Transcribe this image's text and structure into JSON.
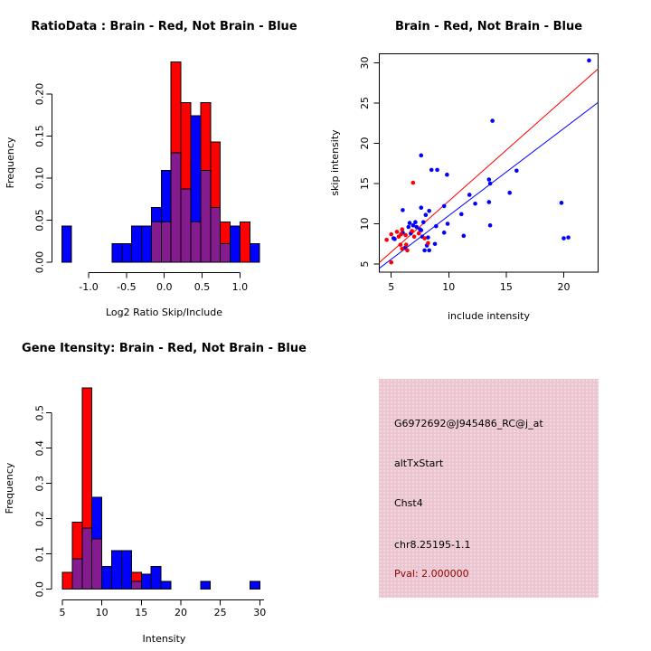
{
  "chart_data": [
    {
      "id": "ratio_histogram",
      "type": "bar",
      "title": "RatioData : Brain - Red, Not Brain - Blue",
      "xlabel": "Log2 Ratio Skip/Include",
      "ylabel": "Frequency",
      "x_ticks": [
        -1.0,
        -0.5,
        0.0,
        0.5,
        1.0
      ],
      "x_tick_labels": [
        "-1.0",
        "-0.5",
        "0.0",
        "0.5",
        "1.0"
      ],
      "y_ticks": [
        0.0,
        0.05,
        0.1,
        0.15,
        0.2
      ],
      "y_tick_labels": [
        "0.00",
        "0.05",
        "0.10",
        "0.15",
        "0.20"
      ],
      "xlim": [
        -1.45,
        1.4
      ],
      "ylim": [
        0,
        0.2435
      ],
      "legend": {
        "Brain": "red",
        "Not Brain": "blue"
      },
      "colors": {
        "red": "#ff0000",
        "blue": "#0000ff",
        "overlap": "#841b8f"
      },
      "bars": [
        {
          "x0": -1.355,
          "x1": -1.225,
          "red": 0,
          "blue": 0.043
        },
        {
          "x0": -0.69,
          "x1": -0.56,
          "red": 0,
          "blue": 0.022
        },
        {
          "x0": -0.56,
          "x1": -0.43,
          "red": 0,
          "blue": 0.022
        },
        {
          "x0": -0.43,
          "x1": -0.3,
          "red": 0,
          "blue": 0.043
        },
        {
          "x0": -0.3,
          "x1": -0.17,
          "red": 0,
          "blue": 0.043
        },
        {
          "x0": -0.17,
          "x1": -0.04,
          "red": 0.048,
          "blue": 0.065
        },
        {
          "x0": -0.04,
          "x1": 0.09,
          "red": 0.048,
          "blue": 0.109
        },
        {
          "x0": 0.09,
          "x1": 0.22,
          "red": 0.238,
          "blue": 0.13
        },
        {
          "x0": 0.22,
          "x1": 0.35,
          "red": 0.19,
          "blue": 0.087
        },
        {
          "x0": 0.35,
          "x1": 0.48,
          "red": 0.048,
          "blue": 0.174
        },
        {
          "x0": 0.48,
          "x1": 0.61,
          "red": 0.19,
          "blue": 0.109
        },
        {
          "x0": 0.61,
          "x1": 0.74,
          "red": 0.143,
          "blue": 0.065
        },
        {
          "x0": 0.74,
          "x1": 0.87,
          "red": 0.048,
          "blue": 0.022
        },
        {
          "x0": 0.87,
          "x1": 1.0,
          "red": 0,
          "blue": 0.043
        },
        {
          "x0": 1.0,
          "x1": 1.13,
          "red": 0.048,
          "blue": 0
        },
        {
          "x0": 1.13,
          "x1": 1.26,
          "red": 0,
          "blue": 0.022
        }
      ]
    },
    {
      "id": "intensity_scatter",
      "type": "scatter",
      "title": "Brain - Red, Not Brain - Blue",
      "xlabel": "include intensity",
      "ylabel": "skip intensity",
      "x_ticks": [
        5,
        10,
        15,
        20
      ],
      "x_tick_labels": [
        "5",
        "10",
        "15",
        "20"
      ],
      "y_ticks": [
        5,
        10,
        15,
        20,
        25,
        30
      ],
      "y_tick_labels": [
        "5",
        "10",
        "15",
        "20",
        "25",
        "30"
      ],
      "xlim": [
        3.9,
        23.1
      ],
      "ylim": [
        4.0,
        31.2
      ],
      "colors": {
        "red": "#ff0000",
        "blue": "#0000ff"
      },
      "points_blue": [
        [
          5.2,
          8.2
        ],
        [
          5.3,
          8.1
        ],
        [
          6.0,
          8.9
        ],
        [
          6.0,
          11.7
        ],
        [
          6.2,
          7.0
        ],
        [
          6.5,
          9.6
        ],
        [
          6.6,
          10.1
        ],
        [
          6.7,
          8.8
        ],
        [
          6.9,
          9.8
        ],
        [
          7.1,
          10.2
        ],
        [
          7.2,
          9.6
        ],
        [
          7.5,
          9.3
        ],
        [
          7.6,
          9.2
        ],
        [
          7.6,
          12.0
        ],
        [
          7.6,
          18.5
        ],
        [
          7.7,
          8.4
        ],
        [
          7.8,
          10.2
        ],
        [
          7.9,
          6.7
        ],
        [
          8.0,
          11.1
        ],
        [
          8.1,
          7.3
        ],
        [
          8.2,
          8.3
        ],
        [
          8.3,
          6.7
        ],
        [
          8.3,
          11.6
        ],
        [
          8.5,
          16.7
        ],
        [
          8.8,
          7.5
        ],
        [
          8.9,
          9.7
        ],
        [
          9.0,
          16.7
        ],
        [
          9.6,
          8.9
        ],
        [
          9.6,
          12.2
        ],
        [
          9.85,
          16.1
        ],
        [
          9.9,
          10.0
        ],
        [
          11.1,
          11.2
        ],
        [
          11.3,
          8.5
        ],
        [
          11.8,
          13.6
        ],
        [
          12.3,
          12.5
        ],
        [
          13.5,
          12.7
        ],
        [
          13.5,
          15.5
        ],
        [
          13.6,
          9.8
        ],
        [
          13.6,
          15.0
        ],
        [
          13.8,
          22.8
        ],
        [
          15.3,
          13.85
        ],
        [
          15.9,
          16.6
        ],
        [
          19.8,
          12.6
        ],
        [
          20.0,
          8.2
        ],
        [
          20.4,
          8.3
        ],
        [
          22.2,
          30.3
        ]
      ],
      "points_red": [
        [
          4.6,
          8.0
        ],
        [
          5.0,
          5.2
        ],
        [
          5.0,
          8.7
        ],
        [
          5.5,
          9.0
        ],
        [
          5.65,
          8.4
        ],
        [
          5.8,
          7.4
        ],
        [
          5.85,
          8.7
        ],
        [
          5.95,
          6.9
        ],
        [
          5.95,
          9.3
        ],
        [
          6.25,
          8.6
        ],
        [
          6.3,
          7.4
        ],
        [
          6.4,
          6.7
        ],
        [
          6.8,
          9.1
        ],
        [
          6.9,
          15.1
        ],
        [
          7.0,
          8.4
        ],
        [
          7.4,
          8.8
        ],
        [
          7.9,
          8.2
        ],
        [
          8.2,
          7.6
        ]
      ],
      "fit_line_red": [
        [
          3.9,
          5.1
        ],
        [
          23.1,
          29.4
        ]
      ],
      "fit_line_blue": [
        [
          3.9,
          4.4
        ],
        [
          23.1,
          25.2
        ]
      ]
    },
    {
      "id": "gene_intensity_histogram",
      "type": "bar",
      "title": "Gene Itensity: Brain - Red, Not Brain - Blue",
      "xlabel": "Intensity",
      "ylabel": "Frequency",
      "x_ticks": [
        5,
        10,
        15,
        20,
        25,
        30
      ],
      "x_tick_labels": [
        "5",
        "10",
        "15",
        "20",
        "25",
        "30"
      ],
      "y_ticks": [
        0.0,
        0.1,
        0.2,
        0.3,
        0.4,
        0.5
      ],
      "y_tick_labels": [
        "0.0",
        "0.1",
        "0.2",
        "0.3",
        "0.4",
        "0.5"
      ],
      "xlim": [
        4.1,
        31.5
      ],
      "ylim": [
        0,
        0.575
      ],
      "legend": {
        "Brain": "red",
        "Not Brain": "blue"
      },
      "colors": {
        "red": "#ff0000",
        "blue": "#0000ff",
        "overlap": "#841b8f"
      },
      "bars": [
        {
          "x0": 5.0,
          "x1": 6.25,
          "red": 0.048,
          "blue": 0
        },
        {
          "x0": 6.25,
          "x1": 7.5,
          "red": 0.19,
          "blue": 0.087
        },
        {
          "x0": 7.5,
          "x1": 8.75,
          "red": 0.571,
          "blue": 0.174
        },
        {
          "x0": 8.75,
          "x1": 10.0,
          "red": 0.143,
          "blue": 0.261
        },
        {
          "x0": 10.0,
          "x1": 11.25,
          "red": 0,
          "blue": 0.065
        },
        {
          "x0": 11.25,
          "x1": 12.5,
          "red": 0,
          "blue": 0.109
        },
        {
          "x0": 12.5,
          "x1": 13.75,
          "red": 0,
          "blue": 0.109
        },
        {
          "x0": 13.75,
          "x1": 15.0,
          "red": 0.048,
          "blue": 0.022
        },
        {
          "x0": 15.0,
          "x1": 16.25,
          "red": 0,
          "blue": 0.043
        },
        {
          "x0": 16.25,
          "x1": 17.5,
          "red": 0,
          "blue": 0.065
        },
        {
          "x0": 17.5,
          "x1": 18.75,
          "red": 0,
          "blue": 0.022
        },
        {
          "x0": 22.5,
          "x1": 23.75,
          "red": 0,
          "blue": 0.022
        },
        {
          "x0": 28.75,
          "x1": 30.0,
          "red": 0,
          "blue": 0.022
        }
      ]
    },
    {
      "id": "gene_info_panel",
      "type": "table",
      "bg_color": "#ebc6d0",
      "text_color": "#000000",
      "pval_color": "#8b0000",
      "lines": [
        "G6972692@J945486_RC@j_at",
        "altTxStart",
        "Chst4",
        "chr8.25195-1.1"
      ],
      "pval_line": "Pval: 2.000000"
    }
  ]
}
